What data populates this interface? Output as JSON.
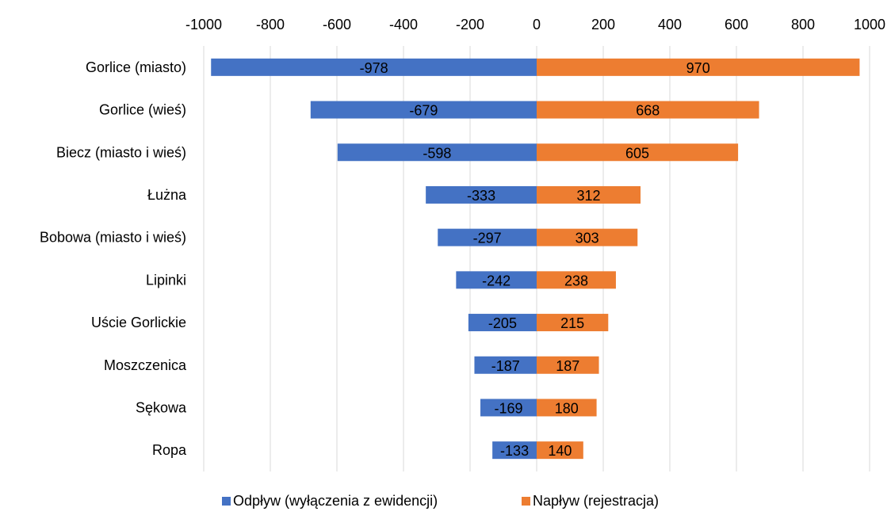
{
  "chart_data": {
    "type": "bar",
    "orientation": "horizontal",
    "stacked": true,
    "title": "",
    "xlabel": "",
    "ylabel": "",
    "xlim": [
      -1000,
      1000
    ],
    "xticks": [
      -1000,
      -800,
      -600,
      -400,
      -200,
      0,
      200,
      400,
      600,
      800,
      1000
    ],
    "xtick_labels": [
      "-1000",
      "-800",
      "-600",
      "-400",
      "-200",
      "0",
      "200",
      "400",
      "600",
      "800",
      "1000"
    ],
    "x_axis_position": "top",
    "grid": true,
    "legend_position": "bottom",
    "categories": [
      "Gorlice (miasto)",
      "Gorlice (wieś)",
      "Biecz (miasto i wieś)",
      "Łużna",
      "Bobowa (miasto i wieś)",
      "Lipinki",
      "Uście Gorlickie",
      "Moszczenica",
      "Sękowa",
      "Ropa"
    ],
    "series": [
      {
        "name": "Odpływ (wyłączenia z ewidencji)",
        "color": "#4472c4",
        "values": [
          -978,
          -679,
          -598,
          -333,
          -297,
          -242,
          -205,
          -187,
          -169,
          -133
        ],
        "labels": [
          "-978",
          "-679",
          "-598",
          "-333",
          "-297",
          "-242",
          "-205",
          "-187",
          "-169",
          "-133"
        ]
      },
      {
        "name": "Napływ (rejestracja)",
        "color": "#ed7d31",
        "values": [
          970,
          668,
          605,
          312,
          303,
          238,
          215,
          187,
          180,
          140
        ],
        "labels": [
          "970",
          "668",
          "605",
          "312",
          "303",
          "238",
          "215",
          "187",
          "180",
          "140"
        ]
      }
    ]
  }
}
